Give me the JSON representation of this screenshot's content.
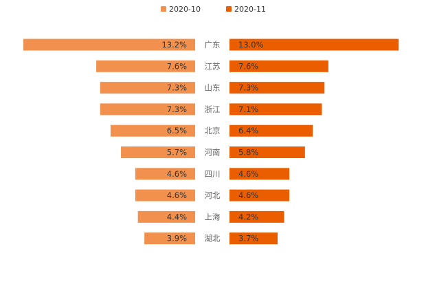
{
  "chart_data": {
    "type": "bar",
    "orientation": "horizontal-butterfly",
    "categories": [
      "广东",
      "江苏",
      "山东",
      "浙江",
      "北京",
      "河南",
      "四川",
      "河北",
      "上海",
      "湖北"
    ],
    "series": [
      {
        "name": "2020-10",
        "values": [
          13.2,
          7.6,
          7.3,
          7.3,
          6.5,
          5.7,
          4.6,
          4.6,
          4.4,
          3.9
        ],
        "side": "left"
      },
      {
        "name": "2020-11",
        "values": [
          13.0,
          7.6,
          7.3,
          7.1,
          6.4,
          5.8,
          4.6,
          4.6,
          4.2,
          3.7
        ],
        "side": "right"
      }
    ],
    "value_format": "percent-1dp",
    "xlim": [
      0,
      13.2
    ],
    "title": "",
    "xlabel": "",
    "ylabel": "",
    "legend_position": "top-center",
    "grid": false,
    "colors": {
      "2020-10": "#f2914e",
      "2020-11": "#eb5e00"
    }
  }
}
